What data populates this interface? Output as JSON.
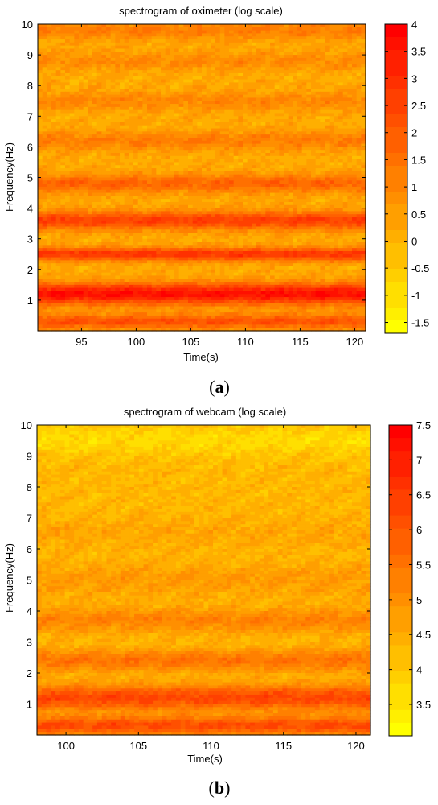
{
  "chart_data": [
    {
      "type": "heatmap",
      "panel": "(a)",
      "panel_letter": "a",
      "title": "spectrogram of oximeter (log scale)",
      "xlabel": "Time(s)",
      "ylabel": "Frequency(Hz)",
      "xlim": [
        91,
        121
      ],
      "ylim": [
        0,
        10
      ],
      "xticks": [
        95,
        100,
        105,
        110,
        115,
        120
      ],
      "yticks": [
        1,
        2,
        3,
        4,
        5,
        6,
        7,
        8,
        9,
        10
      ],
      "colorbar": {
        "range": [
          -1.7,
          4
        ],
        "ticks": [
          -1.5,
          -1,
          -0.5,
          0,
          0.5,
          1,
          1.5,
          2,
          2.5,
          3,
          3.5,
          4
        ],
        "colormap": "autumn-reversed",
        "low_color": "#ffff00",
        "high_color": "#ff0000"
      },
      "bands": [
        {
          "freq": 0.3,
          "value": 2.2,
          "width": 0.25
        },
        {
          "freq": 1.2,
          "value": 3.7,
          "width": 0.35
        },
        {
          "freq": 2.5,
          "value": 2.8,
          "width": 0.22
        },
        {
          "freq": 3.6,
          "value": 2.6,
          "width": 0.3
        },
        {
          "freq": 4.8,
          "value": 1.8,
          "width": 0.3
        },
        {
          "freq": 6.2,
          "value": 1.2,
          "width": 0.3
        },
        {
          "freq": 7.5,
          "value": 1.0,
          "width": 0.3
        },
        {
          "freq": 8.8,
          "value": 0.9,
          "width": 0.3
        },
        {
          "freq": 9.8,
          "value": 1.2,
          "width": 0.3
        }
      ],
      "background_value": 0.2
    },
    {
      "type": "heatmap",
      "panel": "(b)",
      "panel_letter": "b",
      "title": "spectrogram of webcam (log scale)",
      "xlabel": "Time(s)",
      "ylabel": "Frequency(Hz)",
      "xlim": [
        98,
        121
      ],
      "ylim": [
        0,
        10
      ],
      "xticks": [
        100,
        105,
        110,
        115,
        120
      ],
      "yticks": [
        1,
        2,
        3,
        4,
        5,
        6,
        7,
        8,
        9,
        10
      ],
      "colorbar": {
        "range": [
          3.05,
          7.5
        ],
        "ticks": [
          3.5,
          4,
          4.5,
          5,
          5.5,
          6,
          6.5,
          7,
          7.5
        ],
        "colormap": "autumn-reversed",
        "low_color": "#ffff00",
        "high_color": "#ff0000"
      },
      "bands": [
        {
          "freq": 0.3,
          "value": 6.2,
          "width": 0.3
        },
        {
          "freq": 1.2,
          "value": 6.3,
          "width": 0.4
        },
        {
          "freq": 2.4,
          "value": 5.5,
          "width": 0.35
        },
        {
          "freq": 3.7,
          "value": 5.2,
          "width": 0.4
        },
        {
          "freq": 5.0,
          "value": 4.8,
          "width": 0.5
        },
        {
          "freq": 6.5,
          "value": 4.6,
          "width": 0.5
        },
        {
          "freq": 8.0,
          "value": 4.3,
          "width": 0.5
        },
        {
          "freq": 9.5,
          "value": 3.7,
          "width": 0.5
        }
      ],
      "background_value": 4.3
    }
  ]
}
